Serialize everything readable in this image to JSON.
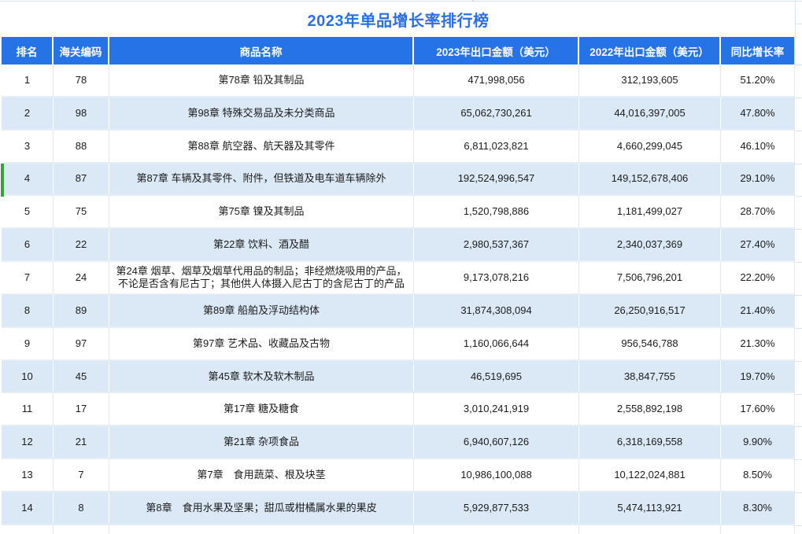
{
  "title": "2023年单品增长率排行榜",
  "table": {
    "columns": [
      "排名",
      "海关编码",
      "商品名称",
      "2023年出口金额（美元）",
      "2022年出口金额（美元）",
      "同比增长率"
    ],
    "rows": [
      {
        "rank": "1",
        "code": "78",
        "name": "第78章 铅及其制品",
        "y2023": "471,998,056",
        "y2022": "312,193,605",
        "growth": "51.20%"
      },
      {
        "rank": "2",
        "code": "98",
        "name": "第98章 特殊交易品及未分类商品",
        "y2023": "65,062,730,261",
        "y2022": "44,016,397,005",
        "growth": "47.80%"
      },
      {
        "rank": "3",
        "code": "88",
        "name": "第88章 航空器、航天器及其零件",
        "y2023": "6,811,023,821",
        "y2022": "4,660,299,045",
        "growth": "46.10%"
      },
      {
        "rank": "4",
        "code": "87",
        "name": "第87章 车辆及其零件、附件，但铁道及电车道车辆除外",
        "y2023": "192,524,996,547",
        "y2022": "149,152,678,406",
        "growth": "29.10%"
      },
      {
        "rank": "5",
        "code": "75",
        "name": "第75章 镍及其制品",
        "y2023": "1,520,798,886",
        "y2022": "1,181,499,027",
        "growth": "28.70%"
      },
      {
        "rank": "6",
        "code": "22",
        "name": "第22章 饮料、酒及醋",
        "y2023": "2,980,537,367",
        "y2022": "2,340,037,369",
        "growth": "27.40%"
      },
      {
        "rank": "7",
        "code": "24",
        "name": "第24章 烟草、烟草及烟草代用品的制品；非经燃烧吸用的产品，不论是否含有尼古丁；其他供人体摄入尼古丁的含尼古丁的产品",
        "y2023": "9,173,078,216",
        "y2022": "7,506,796,201",
        "growth": "22.20%"
      },
      {
        "rank": "8",
        "code": "89",
        "name": "第89章 船舶及浮动结构体",
        "y2023": "31,874,308,094",
        "y2022": "26,250,916,517",
        "growth": "21.40%"
      },
      {
        "rank": "9",
        "code": "97",
        "name": "第97章 艺术品、收藏品及古物",
        "y2023": "1,160,066,644",
        "y2022": "956,546,788",
        "growth": "21.30%"
      },
      {
        "rank": "10",
        "code": "45",
        "name": "第45章 软木及软木制品",
        "y2023": "46,519,695",
        "y2022": "38,847,755",
        "growth": "19.70%"
      },
      {
        "rank": "11",
        "code": "17",
        "name": "第17章 糖及糖食",
        "y2023": "3,010,241,919",
        "y2022": "2,558,892,198",
        "growth": "17.60%"
      },
      {
        "rank": "12",
        "code": "21",
        "name": "第21章 杂项食品",
        "y2023": "6,940,607,126",
        "y2022": "6,318,169,558",
        "growth": "9.90%"
      },
      {
        "rank": "13",
        "code": "7",
        "name": "第7章　食用蔬菜、根及块茎",
        "y2023": "10,986,100,088",
        "y2022": "10,122,024,881",
        "growth": "8.50%"
      },
      {
        "rank": "14",
        "code": "8",
        "name": "第8章　食用水果及坚果；甜瓜或柑橘属水果的果皮",
        "y2023": "5,929,877,533",
        "y2022": "5,474,113,921",
        "growth": "8.30%"
      }
    ],
    "selected_row_rank": "4"
  },
  "colors": {
    "header_bg": "#2673E8",
    "title_text": "#2B6FE4",
    "alt_row_bg": "#DBE8F5",
    "row_separator": "#E7EDF4",
    "cell_border_light": "#E4E8ED",
    "grid_line": "#D9E2EE",
    "selection_green": "#38A23C",
    "text": "#1B1B1B"
  }
}
